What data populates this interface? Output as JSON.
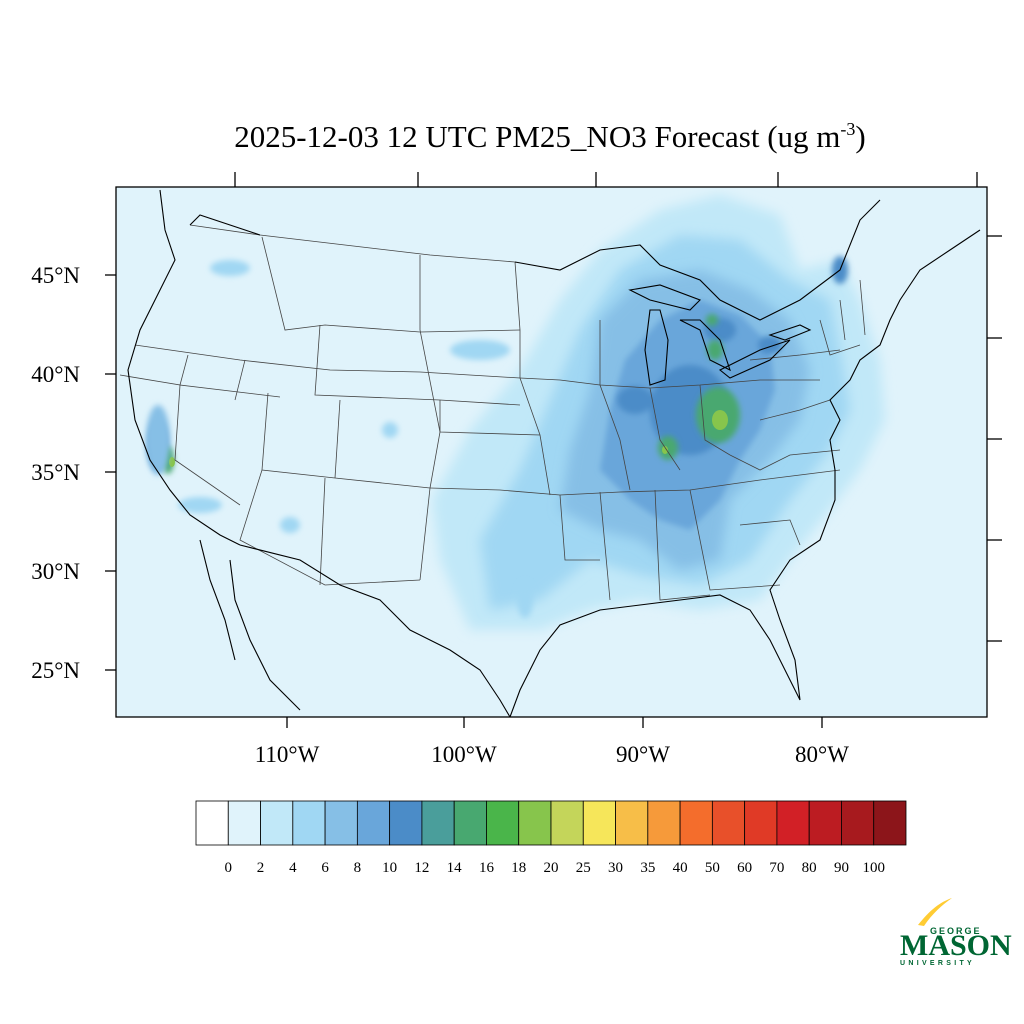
{
  "title": {
    "main": "2025-12-03 12 UTC PM25_NO3 Forecast (ug m",
    "superscript": "-3",
    "close": ")"
  },
  "axes": {
    "y_labels": [
      "45°N",
      "40°N",
      "35°N",
      "30°N",
      "25°N"
    ],
    "x_labels": [
      "110°W",
      "100°W",
      "90°W",
      "80°W"
    ]
  },
  "colorbar": {
    "labels": [
      "0",
      "2",
      "4",
      "6",
      "8",
      "10",
      "12",
      "14",
      "16",
      "18",
      "20",
      "25",
      "30",
      "35",
      "40",
      "50",
      "60",
      "70",
      "80",
      "90",
      "100"
    ],
    "colors": [
      "#ffffff",
      "#e0f3fb",
      "#c1e8f8",
      "#a0d7f3",
      "#86bfe6",
      "#69a6da",
      "#4b8cc8",
      "#4a9e9b",
      "#48a870",
      "#4ab54a",
      "#87c54c",
      "#c4d55a",
      "#f6e65a",
      "#f7be48",
      "#f69a3a",
      "#f46d2c",
      "#e8502a",
      "#e03a26",
      "#d22026",
      "#bc1c22",
      "#a71a1e",
      "#8c151a"
    ]
  },
  "logo": {
    "line1": "GEORGE",
    "line2": "MASON",
    "line3": "UNIVERSITY",
    "color_green": "#006633",
    "color_gold": "#ffcc33"
  }
}
